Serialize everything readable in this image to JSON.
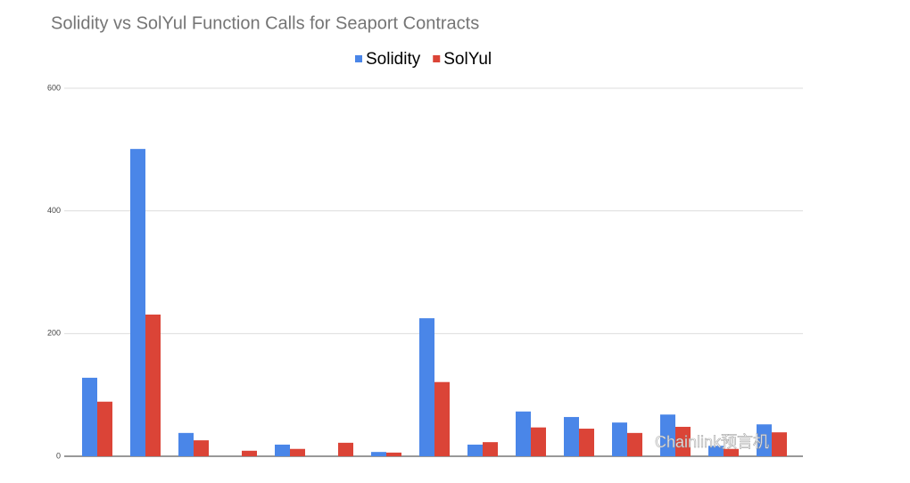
{
  "chart_data": {
    "type": "bar",
    "title": "Solidity vs SolYul Function Calls for Seaport Contracts",
    "categories": [
      null,
      null,
      null,
      null,
      null,
      null,
      null,
      null,
      null,
      null,
      null,
      null,
      null,
      null,
      null
    ],
    "series": [
      {
        "name": "Solidity",
        "color": "#4a86e8",
        "values": [
          128,
          501,
          38,
          0,
          19,
          0,
          7,
          225,
          19,
          73,
          64,
          55,
          68,
          17,
          52
        ]
      },
      {
        "name": "SolYul",
        "color": "#db4437",
        "values": [
          89,
          231,
          26,
          9,
          12,
          22,
          6,
          121,
          23,
          47,
          45,
          38,
          48,
          12,
          39
        ]
      }
    ],
    "ylim": [
      0,
      600
    ],
    "yticks": [
      0,
      200,
      400,
      600
    ],
    "grid": true,
    "legend": "top",
    "watermark": "Chainlink预言机"
  }
}
